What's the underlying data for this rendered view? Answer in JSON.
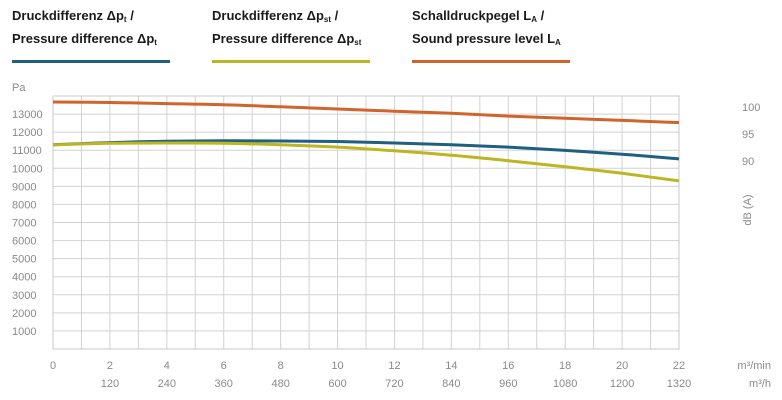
{
  "legend": [
    {
      "line1_prefix": "Druckdifferenz Δp",
      "line1_sub": "t",
      "line1_suffix": " /",
      "line2_prefix": "Pressure difference Δp",
      "line2_sub": "t",
      "line2_suffix": "",
      "color": "#1f5f7f"
    },
    {
      "line1_prefix": "Druckdifferenz Δp",
      "line1_sub": "st",
      "line1_suffix": " /",
      "line2_prefix": "Pressure difference Δp",
      "line2_sub": "st",
      "line2_suffix": "",
      "color": "#bdb521"
    },
    {
      "line1_prefix": "Schalldruckpegel L",
      "line1_sub": "A",
      "line1_suffix": " /",
      "line2_prefix": "Sound pressure level L",
      "line2_sub": "A",
      "line2_suffix": "",
      "color": "#d0642c"
    }
  ],
  "chart_data": {
    "type": "line",
    "ylabel": "Pa",
    "ylim": [
      0,
      14000
    ],
    "y_ticks": [
      1000,
      2000,
      3000,
      4000,
      5000,
      6000,
      7000,
      8000,
      9000,
      10000,
      11000,
      12000,
      13000
    ],
    "y2label": "dB (A)",
    "y2_ticks": [
      90,
      95,
      100
    ],
    "y2_scale": {
      "ref_db": [
        90,
        100
      ],
      "ref_pa": [
        10400,
        13400
      ]
    },
    "xlabel": "m³/min",
    "xlim": [
      0,
      22
    ],
    "x_ticks": [
      0,
      2,
      4,
      6,
      8,
      10,
      12,
      14,
      16,
      18,
      20,
      22
    ],
    "x2label": "m³/h",
    "x2_ticks": [
      {
        "x": 2,
        "label": "120"
      },
      {
        "x": 4,
        "label": "240"
      },
      {
        "x": 6,
        "label": "360"
      },
      {
        "x": 8,
        "label": "480"
      },
      {
        "x": 10,
        "label": "600"
      },
      {
        "x": 12,
        "label": "720"
      },
      {
        "x": 14,
        "label": "840"
      },
      {
        "x": 16,
        "label": "960"
      },
      {
        "x": 18,
        "label": "1080"
      },
      {
        "x": 20,
        "label": "1200"
      },
      {
        "x": 22,
        "label": "1320"
      }
    ],
    "grid": true,
    "series": [
      {
        "name": "Druckdifferenz Δpt / Pressure difference Δpt",
        "color": "#1f5f7f",
        "x": [
          0,
          2,
          4,
          6,
          8,
          10,
          12,
          14,
          16,
          18,
          20,
          22
        ],
        "values": [
          11300,
          11420,
          11500,
          11520,
          11510,
          11480,
          11400,
          11300,
          11170,
          10990,
          10780,
          10520
        ]
      },
      {
        "name": "Druckdifferenz Δpst / Pressure difference Δpst",
        "color": "#bdb521",
        "x": [
          0,
          2,
          4,
          6,
          8,
          10,
          12,
          14,
          16,
          18,
          20,
          22
        ],
        "values": [
          11300,
          11380,
          11400,
          11390,
          11300,
          11170,
          10970,
          10720,
          10420,
          10080,
          9720,
          9300
        ]
      },
      {
        "name": "Schalldruckpegel LA / Sound pressure level LA",
        "color": "#d0642c",
        "axis": "y2",
        "x": [
          0,
          2,
          4,
          6,
          8,
          10,
          12,
          14,
          16,
          18,
          20,
          22
        ],
        "values": [
          100.9,
          100.8,
          100.6,
          100.4,
          100.0,
          99.6,
          99.2,
          98.8,
          98.3,
          97.9,
          97.5,
          97.1
        ]
      }
    ]
  }
}
